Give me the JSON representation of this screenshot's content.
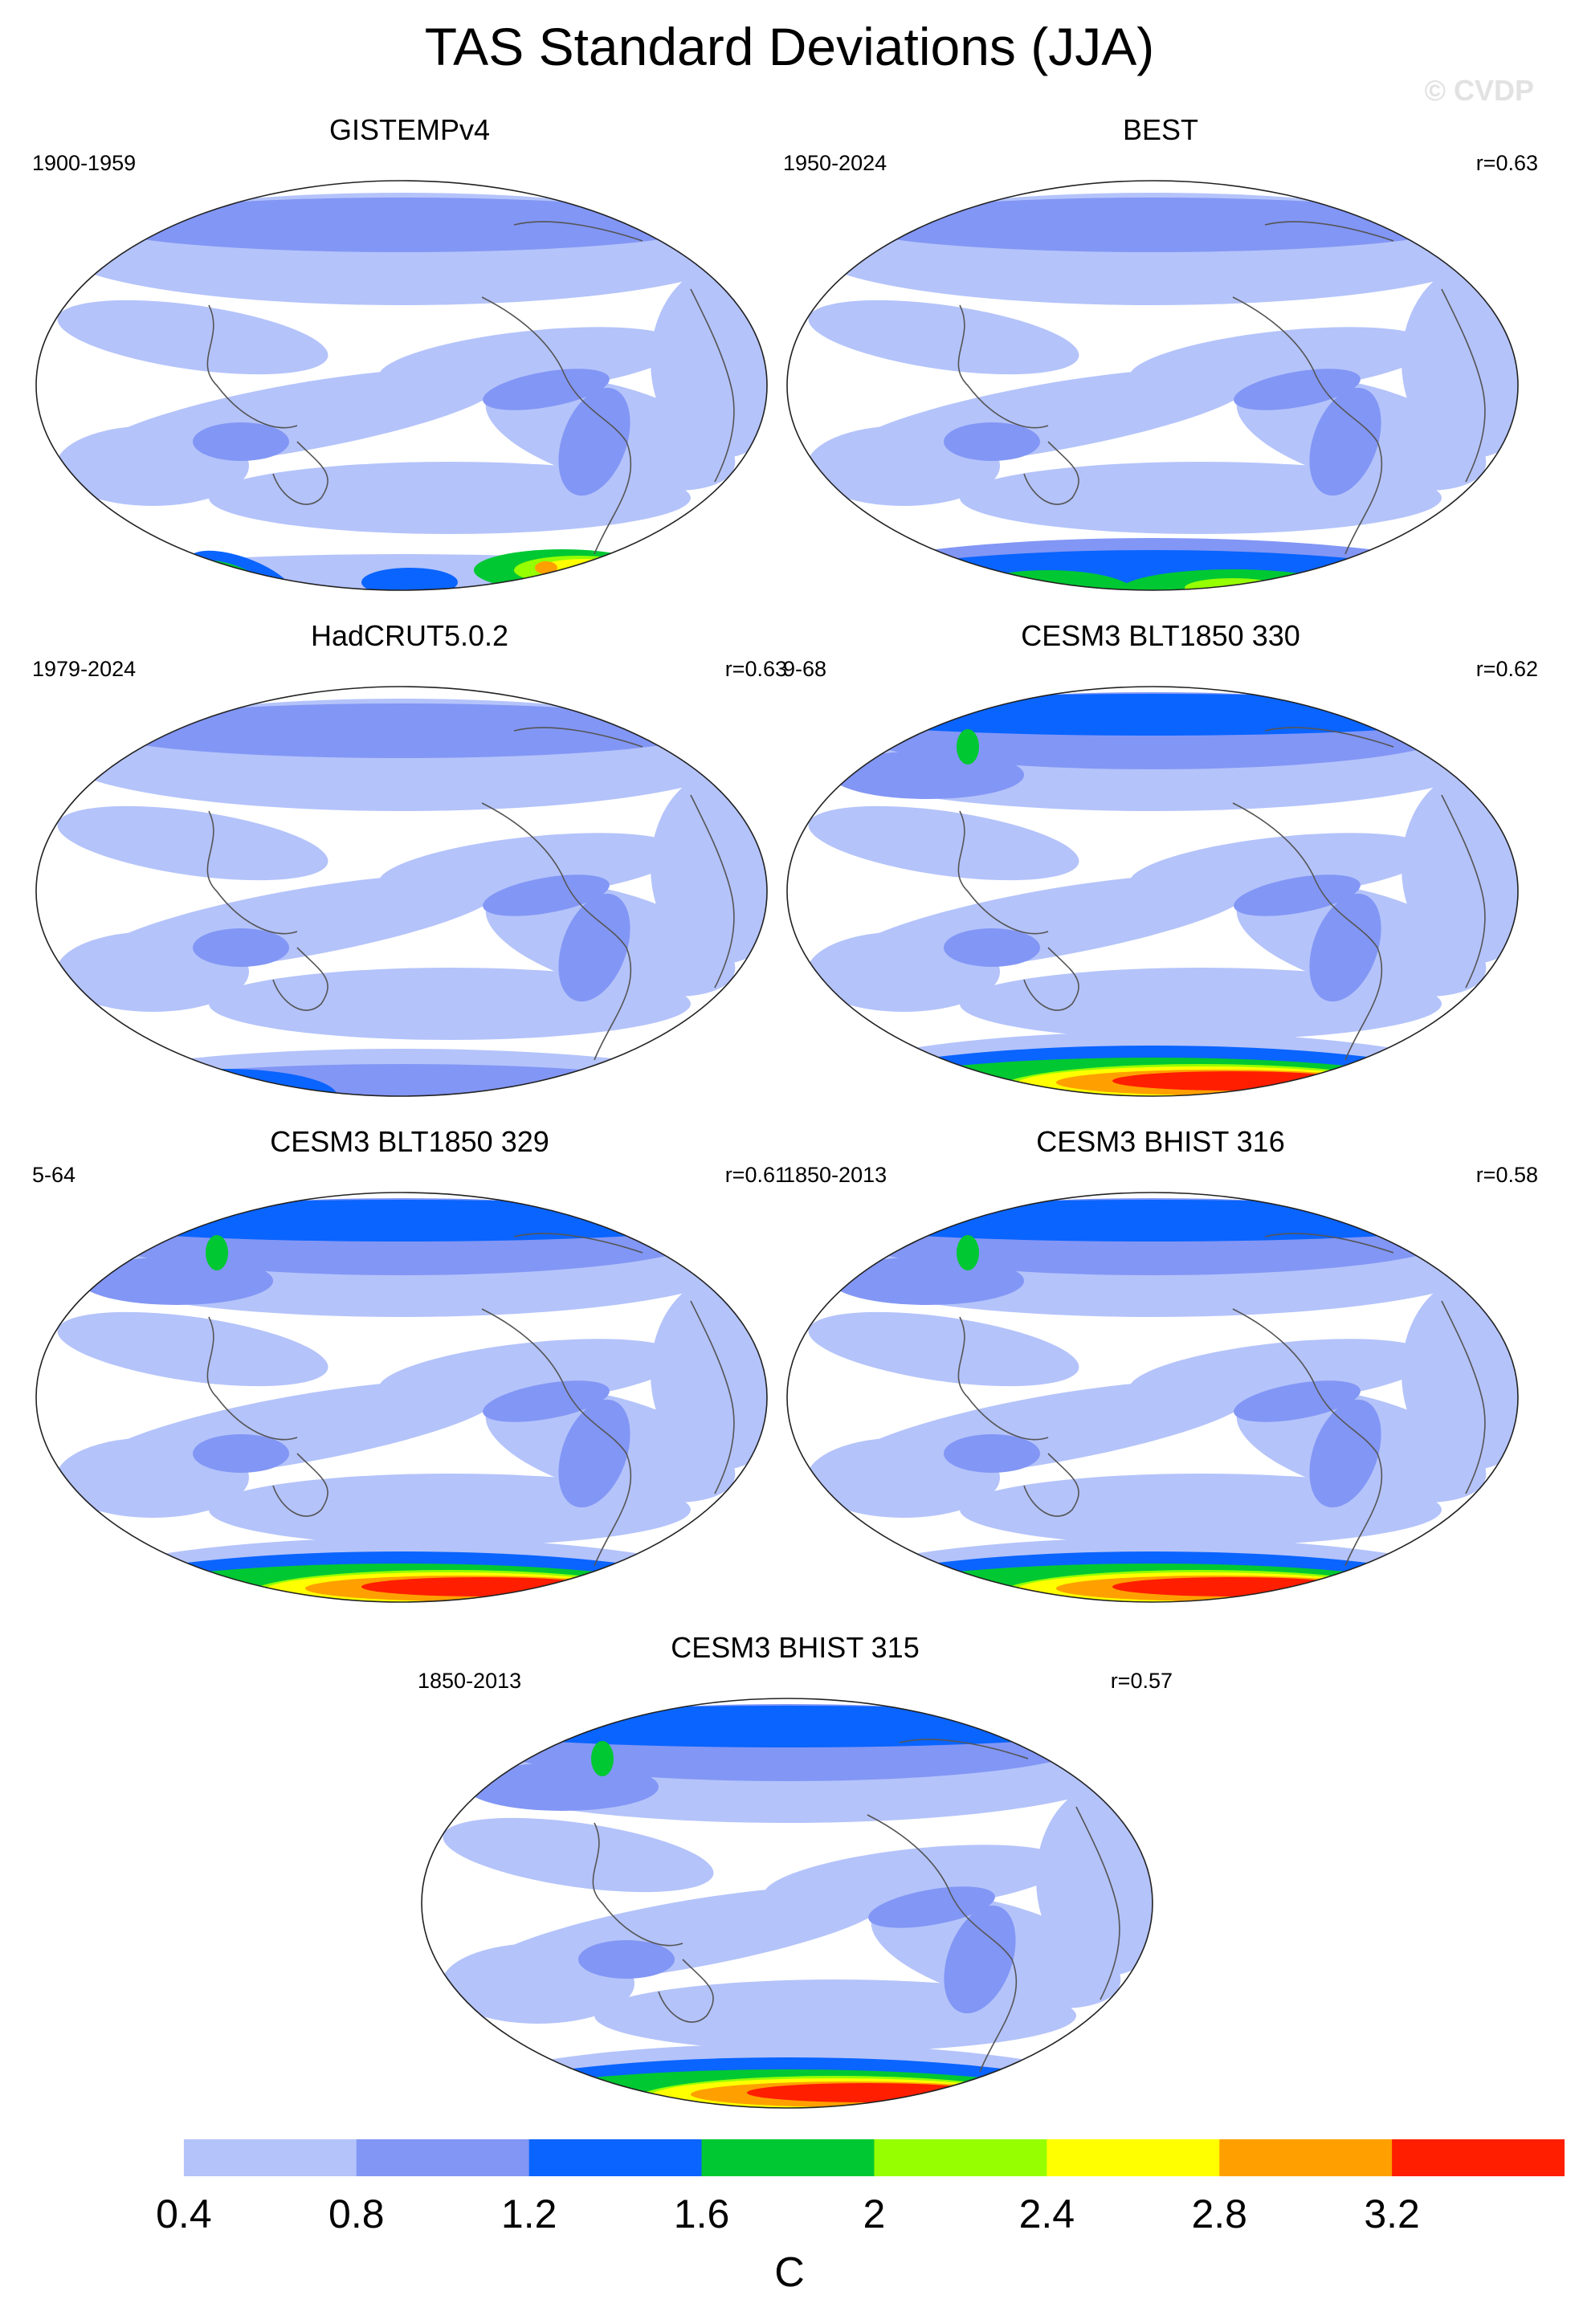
{
  "figure": {
    "title": "TAS Standard Deviations (JJA)",
    "watermark": "© CVDP"
  },
  "panels": [
    {
      "title": "GISTEMPv4",
      "period": "1900-1959",
      "r": "",
      "antarctic": "sparse"
    },
    {
      "title": "BEST",
      "period": "1950-2024",
      "r": "r=0.63",
      "antarctic": "green"
    },
    {
      "title": "HadCRUT5.0.2",
      "period": "1979-2024",
      "r": "r=0.63",
      "antarctic": "blue"
    },
    {
      "title": "CESM3 BLT1850 330",
      "period": "9-68",
      "r": "r=0.62",
      "antarctic": "red"
    },
    {
      "title": "CESM3 BLT1850 329",
      "period": "5-64",
      "r": "r=0.61",
      "antarctic": "red"
    },
    {
      "title": "CESM3 BHIST 316",
      "period": "1850-2013",
      "r": "r=0.58",
      "antarctic": "red"
    },
    {
      "title": "CESM3 BHIST 315",
      "period": "1850-2013",
      "r": "r=0.57",
      "antarctic": "red"
    }
  ],
  "chart_data": {
    "type": "heatmap",
    "title": "TAS Standard Deviations (JJA)",
    "colorbar": {
      "unit": "C",
      "levels": [
        0.4,
        0.8,
        1.2,
        1.6,
        2,
        2.4,
        2.8,
        3.2
      ],
      "tick_labels": [
        "0.4",
        "0.8",
        "1.2",
        "1.6",
        "2",
        "2.4",
        "2.8",
        "3.2"
      ],
      "colors": [
        "#ffffff",
        "#b4c3fa",
        "#8296f5",
        "#0a64ff",
        "#00c832",
        "#96ff00",
        "#ffff00",
        "#ffa000",
        "#ff1e00"
      ]
    },
    "series": [
      {
        "name": "GISTEMPv4",
        "period": "1900-1959"
      },
      {
        "name": "BEST",
        "period": "1950-2024",
        "r": 0.63
      },
      {
        "name": "HadCRUT5.0.2",
        "period": "1979-2024",
        "r": 0.63
      },
      {
        "name": "CESM3 BLT1850 330",
        "period": "9-68",
        "r": 0.62
      },
      {
        "name": "CESM3 BLT1850 329",
        "period": "5-64",
        "r": 0.61
      },
      {
        "name": "CESM3 BHIST 316",
        "period": "1850-2013",
        "r": 0.58
      },
      {
        "name": "CESM3 BHIST 315",
        "period": "1850-2013",
        "r": 0.57
      }
    ]
  }
}
